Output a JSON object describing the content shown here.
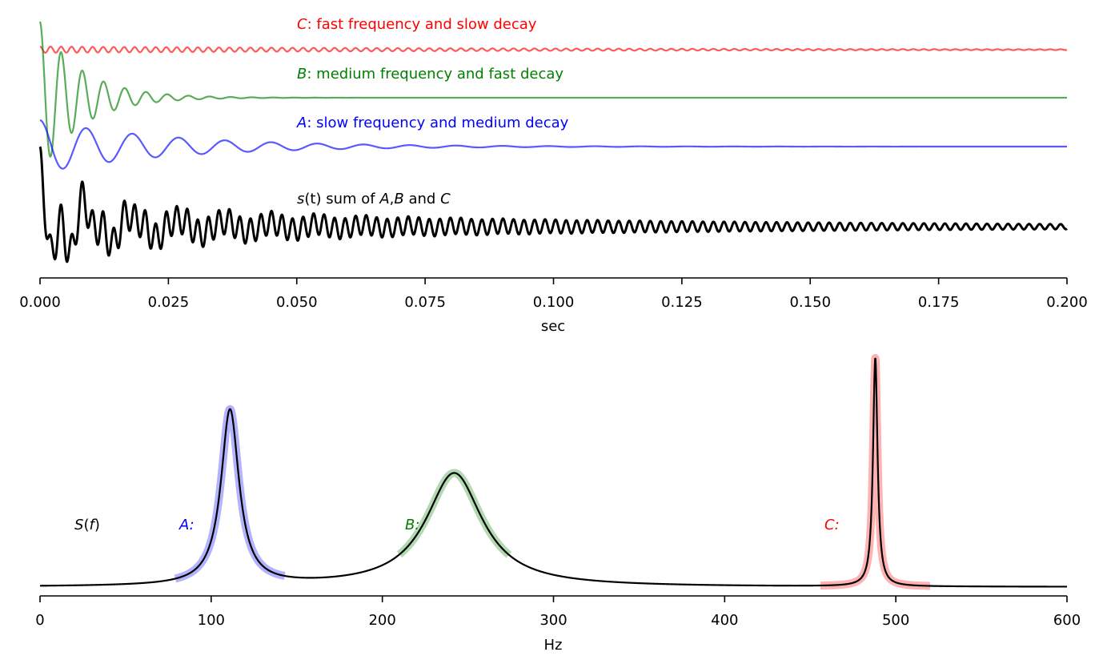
{
  "chart_data": [
    {
      "type": "line",
      "xlabel": "sec",
      "xlim": [
        0.0,
        0.2
      ],
      "xticks": [
        "0.000",
        "0.025",
        "0.050",
        "0.075",
        "0.100",
        "0.125",
        "0.150",
        "0.175",
        "0.200"
      ],
      "y_axis_visible": false,
      "grid": false,
      "series": [
        {
          "key": "C",
          "label_var": "C",
          "label_text": "fast frequency and slow decay",
          "color": "#ff0000",
          "frequency_hz": 488,
          "decay_per_s": 10,
          "amplitude": 0.3,
          "offset": 3.0
        },
        {
          "key": "B",
          "label_var": "B",
          "label_text": "medium frequency and fast decay",
          "color": "#008000",
          "frequency_hz": 242,
          "decay_per_s": 125,
          "amplitude": 1.0,
          "offset": 2.0
        },
        {
          "key": "A",
          "label_var": "A",
          "label_text": "slow frequency and medium decay",
          "color": "#0000ff",
          "frequency_hz": 111,
          "decay_per_s": 40,
          "amplitude": 0.6,
          "offset": 1.0
        },
        {
          "key": "S",
          "label_var": "s",
          "label_text": "sum of A, B and C",
          "label_rich": [
            "s",
            "(t) sum of ",
            "A",
            ",",
            "B",
            " and ",
            "C"
          ],
          "color": "#000000",
          "offset": 0.0
        }
      ]
    },
    {
      "type": "line",
      "xlabel": "Hz",
      "xlim": [
        0,
        600
      ],
      "xticks": [
        "0",
        "100",
        "200",
        "300",
        "400",
        "500",
        "600"
      ],
      "y_axis_visible": false,
      "grid": false,
      "overall_label": "S(f)",
      "overall_label_rich": [
        "S",
        "(",
        "f",
        ")"
      ],
      "peaks": [
        {
          "key": "A",
          "label": "A:",
          "color": "#0000ff",
          "center_hz": 111,
          "half_width_hz": 6.4,
          "highlight_range_hz": [
            79,
            143
          ]
        },
        {
          "key": "B",
          "label": "B:",
          "color": "#008000",
          "center_hz": 242,
          "half_width_hz": 20,
          "highlight_range_hz": [
            210,
            274
          ]
        },
        {
          "key": "C",
          "label": "C:",
          "color": "#ff0000",
          "center_hz": 488,
          "half_width_hz": 1.6,
          "highlight_range_hz": [
            456,
            520
          ]
        }
      ]
    }
  ]
}
